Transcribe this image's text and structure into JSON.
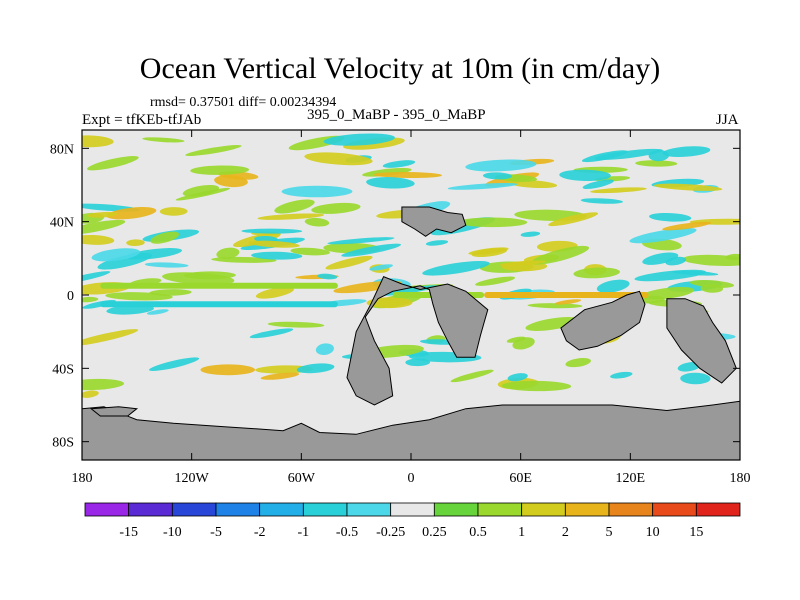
{
  "chart_data": {
    "type": "heatmap",
    "title": "Ocean Vertical Velocity at 10m (in cm/day)",
    "rmsd_label": "rmsd= 0.37501 diff= 0.00234394",
    "left_label": "Expt = tfKEb-tfJAb",
    "center_label": "395_0_MaBP - 395_0_MaBP",
    "right_label": "JJA",
    "x_axis": {
      "range": [
        -180,
        180
      ],
      "ticks": [
        -180,
        -120,
        -60,
        0,
        60,
        120,
        180
      ],
      "tick_labels": [
        "180",
        "120W",
        "60W",
        "0",
        "60E",
        "120E",
        "180"
      ]
    },
    "y_axis": {
      "range": [
        -90,
        90
      ],
      "ticks": [
        80,
        40,
        0,
        -40,
        -80
      ],
      "tick_labels": [
        "80N",
        "40N",
        "0",
        "40S",
        "80S"
      ]
    },
    "colorbar": {
      "labels": [
        "-15",
        "-10",
        "-5",
        "-2",
        "-1",
        "-0.5",
        "-0.25",
        "0.25",
        "0.5",
        "1",
        "2",
        "5",
        "10",
        "15"
      ],
      "colors": [
        "#9a26e8",
        "#5a2ad4",
        "#2846d8",
        "#1e82e6",
        "#22aee6",
        "#2ad0d8",
        "#4cd8e8",
        "#e8e8e8",
        "#66d43a",
        "#9ad82e",
        "#d2cc1e",
        "#e8b41c",
        "#e8841c",
        "#e84a1c",
        "#e0241c"
      ]
    },
    "land_color": "#999999",
    "ocean_background": "#e8e8e8",
    "features": [
      {
        "kind": "band",
        "lat": 0,
        "lon_range": [
          -10,
          40
        ],
        "bin": "0.5"
      },
      {
        "kind": "band",
        "lat": 0,
        "lon_range": [
          40,
          130
        ],
        "bin": "2"
      },
      {
        "kind": "band",
        "lat": 5,
        "lon_range": [
          -170,
          -40
        ],
        "bin": "0.5"
      },
      {
        "kind": "band",
        "lat": -5,
        "lon_range": [
          -170,
          -40
        ],
        "bin": "-0.5"
      }
    ]
  }
}
